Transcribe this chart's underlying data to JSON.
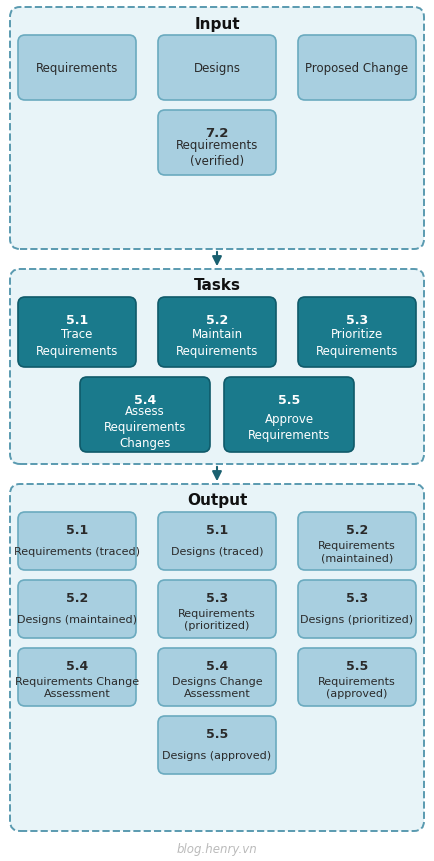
{
  "bg_color": "#ffffff",
  "input_box_fill": "#a8cfe0",
  "input_box_edge": "#6aaabf",
  "task_box_fill": "#1a7a8c",
  "task_box_edge": "#0f5a6a",
  "output_box_fill": "#a8cfe0",
  "output_box_edge": "#6aaabf",
  "section_fill": "#e8f4f8",
  "section_edge": "#5a9ab0",
  "watermark": "blog.henry.vn",
  "input_title": "Input",
  "tasks_title": "Tasks",
  "output_title": "Output",
  "fig_w": 4.34,
  "fig_h": 8.62,
  "dpi": 100
}
